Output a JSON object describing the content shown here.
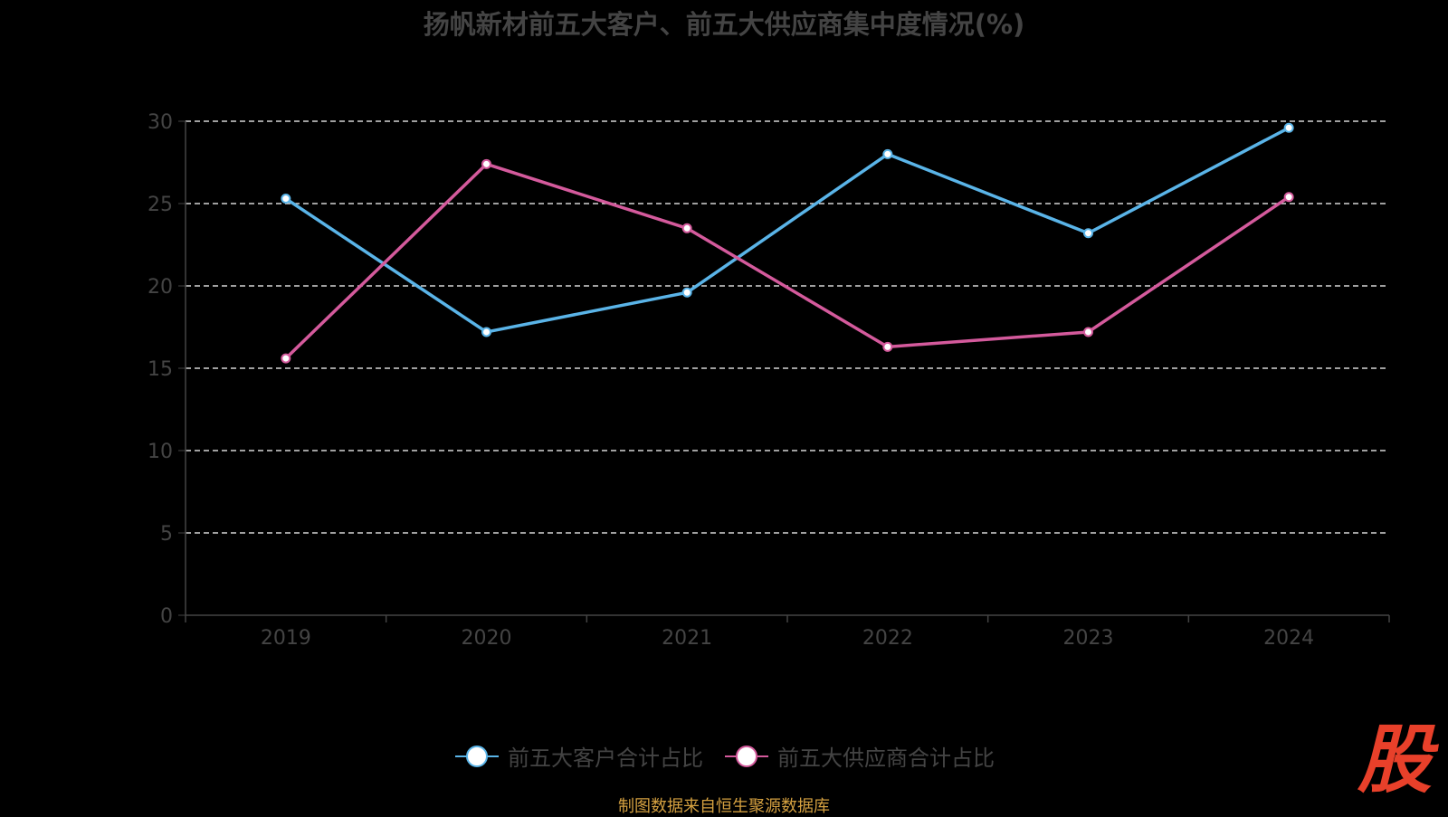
{
  "title": "扬帆新材前五大客户、前五大供应商集中度情况(%)",
  "source": "制图数据来自恒生聚源数据库",
  "logo_text": "股",
  "chart_data": {
    "type": "line",
    "categories": [
      "2019",
      "2020",
      "2021",
      "2022",
      "2023",
      "2024"
    ],
    "ylim": [
      0,
      30
    ],
    "yticks": [
      "0",
      "5",
      "10",
      "15",
      "20",
      "25",
      "30"
    ],
    "grid": true,
    "legend_position": "bottom",
    "series": [
      {
        "name": "前五大客户合计占比",
        "color": "#5ab4e8",
        "values": [
          25.3,
          17.2,
          19.6,
          28.0,
          23.2,
          29.6
        ]
      },
      {
        "name": "前五大供应商合计占比",
        "color": "#d45a9c",
        "values": [
          15.6,
          27.4,
          23.5,
          16.3,
          17.2,
          25.4
        ]
      }
    ]
  }
}
